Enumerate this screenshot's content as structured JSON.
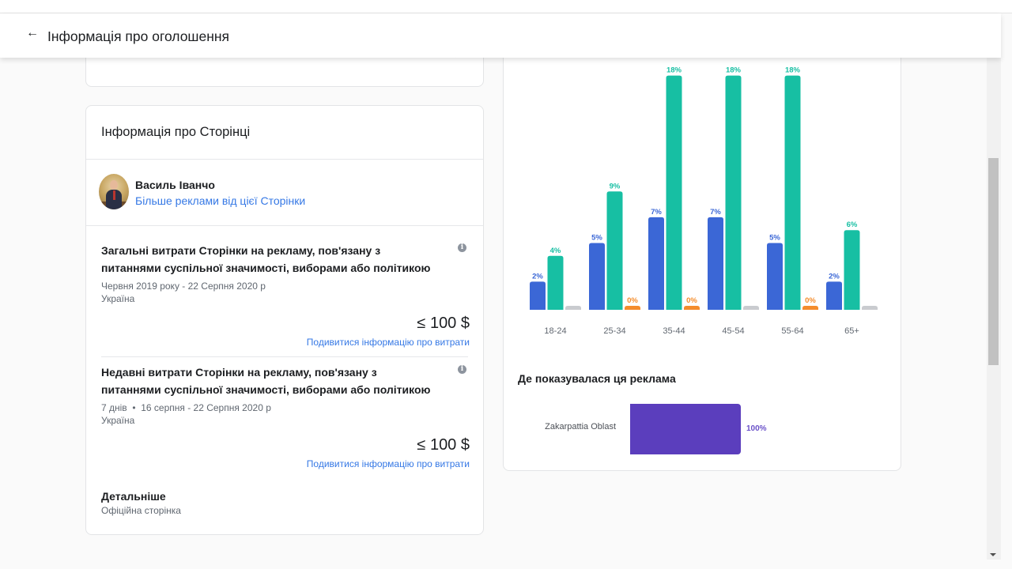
{
  "header": {
    "back_icon": "arrow-left-icon",
    "title": "Інформація про оголошення"
  },
  "page_info": {
    "section_title": "Інформація про Сторінці",
    "page_name": "Василь Іванчо",
    "more_ads_link": "Більше реклами від цієї Сторінки",
    "spend_total": {
      "title": "Загальні витрати Сторінки на рекламу, пов'язану з питаннями суспільної значимості, виборами або політикою",
      "date_range": "Червня 2019 року - 22 Серпня 2020 р",
      "country": "Україна",
      "amount": "≤ 100 $",
      "link": "Подивитися інформацію про витрати"
    },
    "spend_recent": {
      "title": "Недавні витрати Сторінки на рекламу, пов'язану з питаннями суспільної значимості, виборами або політикою",
      "date_range": "7 днів  •  16 серпня - 22 Серпня 2020 р",
      "country": "Україна",
      "amount": "≤ 100 $",
      "link": "Подивитися інформацію про витрати"
    },
    "details": {
      "title": "Детальніше",
      "subtitle": "Офіційна сторінка"
    }
  },
  "region": {
    "title": "Де показувалася ця реклама",
    "items": [
      {
        "label": "Zakarpattia Oblast",
        "value": 100,
        "value_label": "100%"
      }
    ],
    "color": "#5b3ebd"
  },
  "chart_data": {
    "type": "bar",
    "title": "",
    "xlabel": "",
    "ylabel": "",
    "categories": [
      "18-24",
      "25-34",
      "35-44",
      "45-54",
      "55-64",
      "65+"
    ],
    "ylim": [
      0,
      18
    ],
    "series": [
      {
        "name": "series-blue",
        "color": "#3b67d6",
        "values": [
          2,
          5,
          7,
          7,
          5,
          2
        ],
        "labels": [
          "2%",
          "5%",
          "7%",
          "7%",
          "5%",
          "2%"
        ]
      },
      {
        "name": "series-teal",
        "color": "#17bfa3",
        "values": [
          4,
          9,
          18,
          18,
          18,
          6
        ],
        "labels": [
          "4%",
          "9%",
          "18%",
          "18%",
          "18%",
          "6%"
        ]
      },
      {
        "name": "series-third",
        "color": "#f48c2c",
        "values": [
          0,
          0,
          0,
          0,
          0,
          0
        ],
        "labels": [
          "",
          "0%",
          "0%",
          "",
          "0%",
          ""
        ],
        "zero_colors": [
          "#c9cbcf",
          "#f48c2c",
          "#f48c2c",
          "#c9cbcf",
          "#f48c2c",
          "#c9cbcf"
        ]
      }
    ]
  }
}
